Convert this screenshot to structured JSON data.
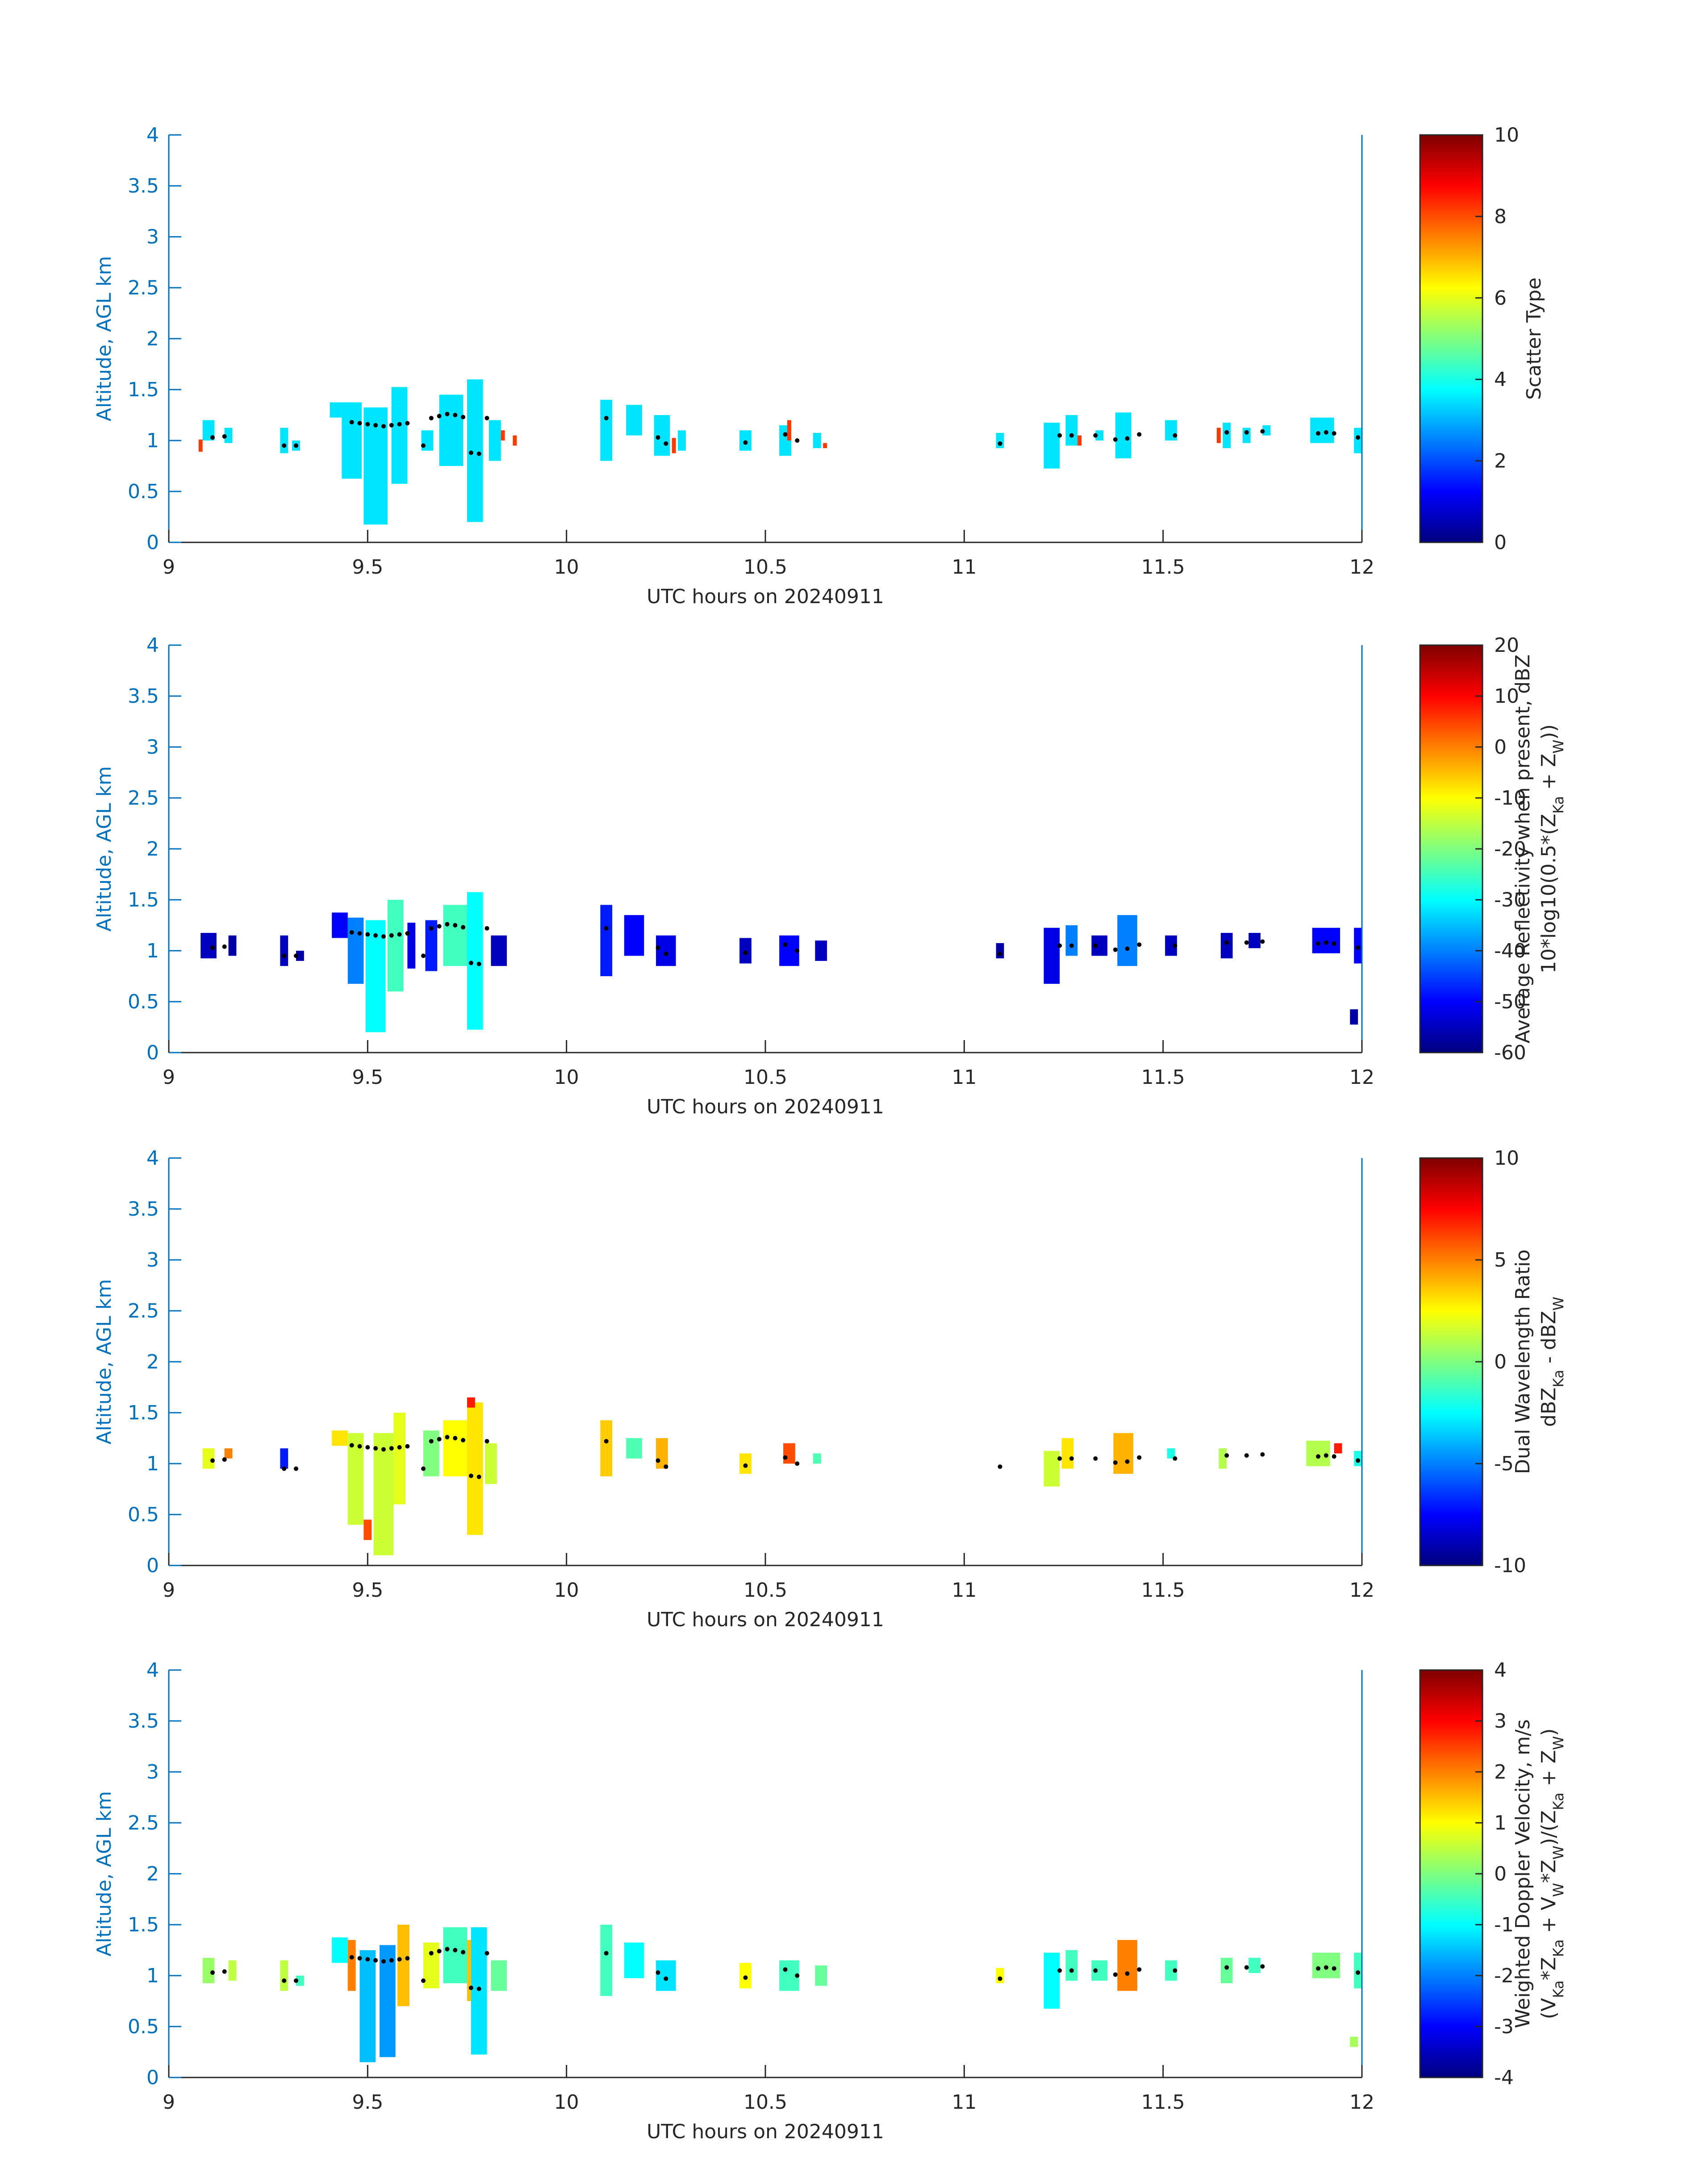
{
  "colors": {
    "axis": "#0072BD",
    "text": "#262626",
    "dots": "#000000"
  },
  "chart_data": [
    {
      "type": "heatmap",
      "panel": 1,
      "xlabel": "UTC hours on 20240911",
      "ylabel": "Altitude, AGL km",
      "xlim": [
        9,
        12
      ],
      "ylim": [
        0,
        4
      ],
      "xticks": [
        "9",
        "9.5",
        "10",
        "10.5",
        "11",
        "11.5",
        "12"
      ],
      "yticks": [
        "0",
        "0.5",
        "1",
        "1.5",
        "2",
        "2.5",
        "3",
        "3.5",
        "4"
      ],
      "colorbar": {
        "label_lines": [
          "Scatter Type"
        ],
        "clim": [
          0,
          10
        ],
        "ticks": [
          "0",
          "2",
          "4",
          "6",
          "8",
          "10"
        ]
      },
      "cells": [
        [
          9.1,
          1.1,
          3.5,
          0.03,
          0.2
        ],
        [
          9.15,
          1.05,
          3.5,
          0.02,
          0.15
        ],
        [
          9.29,
          1.0,
          3.5,
          0.02,
          0.25
        ],
        [
          9.32,
          0.95,
          3.5,
          0.02,
          0.1
        ],
        [
          9.42,
          1.3,
          3.5,
          0.03,
          0.15
        ],
        [
          9.46,
          1.0,
          3.5,
          0.05,
          0.75
        ],
        [
          9.52,
          0.75,
          3.5,
          0.06,
          1.15
        ],
        [
          9.58,
          1.05,
          3.5,
          0.04,
          0.95
        ],
        [
          9.65,
          1.0,
          3.5,
          0.03,
          0.2
        ],
        [
          9.71,
          1.1,
          3.5,
          0.06,
          0.7
        ],
        [
          9.77,
          0.9,
          3.5,
          0.04,
          1.4
        ],
        [
          9.82,
          1.0,
          3.5,
          0.03,
          0.4
        ],
        [
          10.1,
          1.1,
          3.5,
          0.03,
          0.6
        ],
        [
          10.17,
          1.2,
          3.5,
          0.04,
          0.3
        ],
        [
          10.24,
          1.05,
          3.5,
          0.04,
          0.4
        ],
        [
          10.29,
          1.0,
          3.5,
          0.02,
          0.2
        ],
        [
          10.45,
          1.0,
          3.5,
          0.03,
          0.2
        ],
        [
          10.55,
          1.0,
          3.5,
          0.03,
          0.3
        ],
        [
          10.63,
          1.0,
          3.5,
          0.02,
          0.15
        ],
        [
          11.09,
          1.0,
          3.5,
          0.02,
          0.15
        ],
        [
          11.22,
          0.95,
          3.5,
          0.04,
          0.45
        ],
        [
          11.27,
          1.1,
          3.5,
          0.03,
          0.3
        ],
        [
          11.34,
          1.05,
          3.5,
          0.02,
          0.1
        ],
        [
          11.4,
          1.05,
          3.5,
          0.04,
          0.45
        ],
        [
          11.52,
          1.1,
          3.5,
          0.03,
          0.2
        ],
        [
          11.66,
          1.05,
          3.5,
          0.02,
          0.25
        ],
        [
          11.71,
          1.05,
          3.5,
          0.02,
          0.15
        ],
        [
          11.76,
          1.1,
          3.5,
          0.02,
          0.1
        ],
        [
          11.9,
          1.1,
          3.5,
          0.06,
          0.25
        ],
        [
          11.99,
          1.0,
          3.5,
          0.02,
          0.25
        ],
        [
          9.08,
          0.95,
          8.2,
          0.01,
          0.12
        ],
        [
          9.84,
          1.05,
          8.2,
          0.01,
          0.1
        ],
        [
          9.87,
          1.0,
          8.2,
          0.01,
          0.1
        ],
        [
          10.27,
          0.95,
          8.2,
          0.01,
          0.15
        ],
        [
          10.56,
          1.1,
          8.2,
          0.01,
          0.2
        ],
        [
          10.65,
          0.95,
          8.2,
          0.01,
          0.05
        ],
        [
          11.29,
          1.0,
          8.2,
          0.01,
          0.1
        ],
        [
          11.64,
          1.05,
          8.2,
          0.01,
          0.15
        ]
      ]
    },
    {
      "type": "heatmap",
      "panel": 2,
      "xlabel": "UTC hours on 20240911",
      "ylabel": "Altitude, AGL km",
      "xlim": [
        9,
        12
      ],
      "ylim": [
        0,
        4
      ],
      "xticks": [
        "9",
        "9.5",
        "10",
        "10.5",
        "11",
        "11.5",
        "12"
      ],
      "yticks": [
        "0",
        "0.5",
        "1",
        "1.5",
        "2",
        "2.5",
        "3",
        "3.5",
        "4"
      ],
      "colorbar": {
        "label_lines": [
          "Average Reflectivity when present, dBZ",
          "10*log10(0.5*(Z_Ka + Z_W))"
        ],
        "clim": [
          -60,
          20
        ],
        "ticks": [
          "-60",
          "-50",
          "-40",
          "-30",
          "-20",
          "-10",
          "0",
          "10",
          "20"
        ]
      },
      "cells": [
        [
          9.1,
          1.05,
          -55,
          0.04,
          0.25
        ],
        [
          9.16,
          1.05,
          -57,
          0.02,
          0.2
        ],
        [
          9.29,
          1.0,
          -55,
          0.02,
          0.3
        ],
        [
          9.33,
          0.95,
          -57,
          0.02,
          0.1
        ],
        [
          9.43,
          1.25,
          -50,
          0.04,
          0.25
        ],
        [
          9.47,
          1.0,
          -40,
          0.04,
          0.65
        ],
        [
          9.52,
          0.75,
          -30,
          0.05,
          1.1
        ],
        [
          9.57,
          1.05,
          -25,
          0.04,
          0.9
        ],
        [
          9.61,
          1.05,
          -52,
          0.02,
          0.45
        ],
        [
          9.66,
          1.05,
          -48,
          0.03,
          0.5
        ],
        [
          9.72,
          1.15,
          -25,
          0.06,
          0.6
        ],
        [
          9.77,
          0.9,
          -30,
          0.04,
          1.35
        ],
        [
          9.83,
          1.0,
          -55,
          0.04,
          0.3
        ],
        [
          10.1,
          1.1,
          -48,
          0.03,
          0.7
        ],
        [
          10.17,
          1.15,
          -50,
          0.05,
          0.4
        ],
        [
          10.25,
          1.0,
          -52,
          0.05,
          0.3
        ],
        [
          10.45,
          1.0,
          -55,
          0.03,
          0.25
        ],
        [
          10.56,
          1.0,
          -50,
          0.05,
          0.3
        ],
        [
          10.64,
          1.0,
          -55,
          0.03,
          0.2
        ],
        [
          11.09,
          1.0,
          -57,
          0.02,
          0.15
        ],
        [
          11.22,
          0.95,
          -52,
          0.04,
          0.55
        ],
        [
          11.27,
          1.1,
          -40,
          0.03,
          0.3
        ],
        [
          11.34,
          1.05,
          -55,
          0.04,
          0.2
        ],
        [
          11.41,
          1.1,
          -40,
          0.05,
          0.5
        ],
        [
          11.52,
          1.05,
          -55,
          0.03,
          0.2
        ],
        [
          11.66,
          1.05,
          -55,
          0.03,
          0.25
        ],
        [
          11.73,
          1.1,
          -55,
          0.03,
          0.15
        ],
        [
          11.91,
          1.1,
          -50,
          0.07,
          0.25
        ],
        [
          11.99,
          1.05,
          -50,
          0.02,
          0.35
        ],
        [
          11.98,
          0.35,
          -57,
          0.02,
          0.15
        ]
      ]
    },
    {
      "type": "heatmap",
      "panel": 3,
      "xlabel": "UTC hours on 20240911",
      "ylabel": "Altitude, AGL km",
      "xlim": [
        9,
        12
      ],
      "ylim": [
        0,
        4
      ],
      "xticks": [
        "9",
        "9.5",
        "10",
        "10.5",
        "11",
        "11.5",
        "12"
      ],
      "yticks": [
        "0",
        "0.5",
        "1",
        "1.5",
        "2",
        "2.5",
        "3",
        "3.5",
        "4"
      ],
      "colorbar": {
        "label_lines": [
          "Dual Wavelength Ratio",
          "dBZ_Ka - dBZ_W"
        ],
        "clim": [
          -10,
          10
        ],
        "ticks": [
          "-10",
          "-5",
          "0",
          "5",
          "10"
        ]
      },
      "cells": [
        [
          9.1,
          1.05,
          2,
          0.03,
          0.2
        ],
        [
          9.15,
          1.1,
          5,
          0.02,
          0.1
        ],
        [
          9.29,
          1.05,
          -7,
          0.02,
          0.2
        ],
        [
          9.43,
          1.25,
          3,
          0.04,
          0.15
        ],
        [
          9.47,
          0.85,
          1.5,
          0.04,
          0.9
        ],
        [
          9.5,
          0.35,
          6,
          0.02,
          0.2
        ],
        [
          9.54,
          0.7,
          1.5,
          0.05,
          1.2
        ],
        [
          9.58,
          1.05,
          2,
          0.03,
          0.9
        ],
        [
          9.66,
          1.1,
          0,
          0.04,
          0.45
        ],
        [
          9.72,
          1.15,
          2.5,
          0.06,
          0.55
        ],
        [
          9.77,
          0.95,
          3,
          0.04,
          1.3
        ],
        [
          9.81,
          1.0,
          1.5,
          0.03,
          0.4
        ],
        [
          9.76,
          1.6,
          7,
          0.02,
          0.1
        ],
        [
          10.1,
          1.15,
          3.5,
          0.03,
          0.55
        ],
        [
          10.17,
          1.15,
          -1,
          0.04,
          0.2
        ],
        [
          10.24,
          1.1,
          4,
          0.03,
          0.3
        ],
        [
          10.45,
          1.0,
          3,
          0.03,
          0.2
        ],
        [
          10.56,
          1.1,
          6,
          0.03,
          0.2
        ],
        [
          10.63,
          1.05,
          -1,
          0.02,
          0.1
        ],
        [
          11.22,
          0.95,
          1.5,
          0.04,
          0.35
        ],
        [
          11.26,
          1.1,
          3,
          0.03,
          0.3
        ],
        [
          11.4,
          1.1,
          4,
          0.05,
          0.4
        ],
        [
          11.52,
          1.1,
          -2,
          0.02,
          0.1
        ],
        [
          11.65,
          1.05,
          1,
          0.02,
          0.2
        ],
        [
          11.89,
          1.1,
          1,
          0.06,
          0.25
        ],
        [
          11.94,
          1.15,
          7,
          0.02,
          0.1
        ],
        [
          11.99,
          1.05,
          -2,
          0.02,
          0.15
        ]
      ]
    },
    {
      "type": "heatmap",
      "panel": 4,
      "xlabel": "UTC hours on 20240911",
      "ylabel": "Altitude, AGL km",
      "xlim": [
        9,
        12
      ],
      "ylim": [
        0,
        4
      ],
      "xticks": [
        "9",
        "9.5",
        "10",
        "10.5",
        "11",
        "11.5",
        "12"
      ],
      "yticks": [
        "0",
        "0.5",
        "1",
        "1.5",
        "2",
        "2.5",
        "3",
        "3.5",
        "4"
      ],
      "colorbar": {
        "label_lines": [
          "Weighted Doppler Velocity, m/s",
          "(V_Ka*Z_Ka + V_W*Z_W)/(Z_Ka + Z_W)"
        ],
        "clim": [
          -4,
          4
        ],
        "ticks": [
          "-4",
          "-3",
          "-2",
          "-1",
          "0",
          "1",
          "2",
          "3",
          "4"
        ]
      },
      "cells": [
        [
          9.1,
          1.05,
          0.2,
          0.03,
          0.25
        ],
        [
          9.16,
          1.05,
          0.5,
          0.02,
          0.2
        ],
        [
          9.29,
          1.0,
          0.5,
          0.02,
          0.3
        ],
        [
          9.33,
          0.95,
          -0.5,
          0.02,
          0.1
        ],
        [
          9.43,
          1.25,
          -1.0,
          0.04,
          0.25
        ],
        [
          9.46,
          1.1,
          2.0,
          0.02,
          0.5
        ],
        [
          9.5,
          0.7,
          -1.5,
          0.04,
          1.1
        ],
        [
          9.55,
          0.75,
          -1.8,
          0.04,
          1.1
        ],
        [
          9.59,
          1.1,
          1.5,
          0.03,
          0.8
        ],
        [
          9.66,
          1.1,
          0.8,
          0.04,
          0.45
        ],
        [
          9.72,
          1.2,
          -0.5,
          0.06,
          0.55
        ],
        [
          9.76,
          1.05,
          1.5,
          0.02,
          0.6
        ],
        [
          9.78,
          0.85,
          -1.2,
          0.04,
          1.25
        ],
        [
          9.83,
          1.0,
          -0.2,
          0.04,
          0.3
        ],
        [
          10.1,
          1.15,
          -0.5,
          0.03,
          0.7
        ],
        [
          10.17,
          1.15,
          -1.0,
          0.05,
          0.35
        ],
        [
          10.25,
          1.0,
          -1.2,
          0.05,
          0.3
        ],
        [
          10.45,
          1.0,
          1.0,
          0.03,
          0.25
        ],
        [
          10.56,
          1.0,
          -0.5,
          0.05,
          0.3
        ],
        [
          10.64,
          1.0,
          -0.2,
          0.03,
          0.2
        ],
        [
          11.09,
          1.0,
          1.0,
          0.02,
          0.15
        ],
        [
          11.22,
          0.95,
          -1.0,
          0.04,
          0.55
        ],
        [
          11.27,
          1.1,
          -0.5,
          0.03,
          0.3
        ],
        [
          11.34,
          1.05,
          -0.5,
          0.04,
          0.2
        ],
        [
          11.41,
          1.1,
          2.0,
          0.05,
          0.5
        ],
        [
          11.52,
          1.05,
          -0.5,
          0.03,
          0.2
        ],
        [
          11.66,
          1.05,
          -0.2,
          0.03,
          0.25
        ],
        [
          11.73,
          1.1,
          -0.5,
          0.03,
          0.15
        ],
        [
          11.91,
          1.1,
          0.0,
          0.07,
          0.25
        ],
        [
          11.99,
          1.05,
          -0.5,
          0.02,
          0.35
        ],
        [
          11.98,
          0.35,
          0.3,
          0.02,
          0.1
        ]
      ]
    }
  ],
  "dots": [
    [
      9.11,
      1.03
    ],
    [
      9.14,
      1.04
    ],
    [
      9.29,
      0.95
    ],
    [
      9.32,
      0.95
    ],
    [
      9.46,
      1.18
    ],
    [
      9.48,
      1.17
    ],
    [
      9.5,
      1.16
    ],
    [
      9.52,
      1.15
    ],
    [
      9.54,
      1.14
    ],
    [
      9.56,
      1.15
    ],
    [
      9.58,
      1.16
    ],
    [
      9.6,
      1.17
    ],
    [
      9.64,
      0.95
    ],
    [
      9.66,
      1.22
    ],
    [
      9.68,
      1.24
    ],
    [
      9.7,
      1.26
    ],
    [
      9.72,
      1.25
    ],
    [
      9.74,
      1.23
    ],
    [
      9.76,
      0.88
    ],
    [
      9.78,
      0.87
    ],
    [
      9.8,
      1.22
    ],
    [
      10.1,
      1.22
    ],
    [
      10.23,
      1.03
    ],
    [
      10.25,
      0.97
    ],
    [
      10.45,
      0.98
    ],
    [
      10.55,
      1.06
    ],
    [
      10.58,
      1.0
    ],
    [
      11.09,
      0.97
    ],
    [
      11.24,
      1.05
    ],
    [
      11.27,
      1.05
    ],
    [
      11.33,
      1.05
    ],
    [
      11.38,
      1.01
    ],
    [
      11.41,
      1.02
    ],
    [
      11.44,
      1.06
    ],
    [
      11.53,
      1.05
    ],
    [
      11.66,
      1.08
    ],
    [
      11.71,
      1.08
    ],
    [
      11.75,
      1.09
    ],
    [
      11.89,
      1.07
    ],
    [
      11.91,
      1.08
    ],
    [
      11.93,
      1.07
    ],
    [
      11.99,
      1.03
    ]
  ]
}
